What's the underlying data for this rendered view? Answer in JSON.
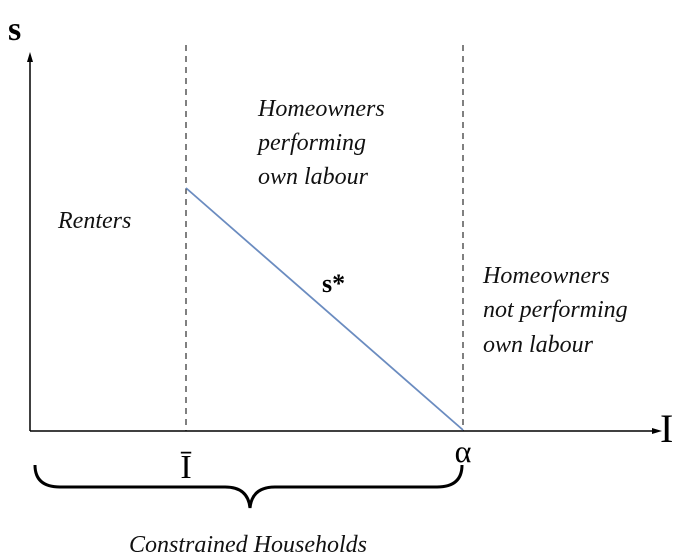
{
  "axes": {
    "y_label": "s",
    "x_label": "I"
  },
  "markers": {
    "threshold": "Ī",
    "alpha": "α"
  },
  "curve_label": "s*",
  "regions": [
    {
      "lines": [
        "Renters"
      ]
    },
    {
      "lines": [
        "Homeowners",
        "performing",
        "own labour"
      ]
    },
    {
      "lines": [
        "Homeowners",
        "not performing",
        "own labour"
      ]
    }
  ],
  "brace_label": "Constrained Households"
}
